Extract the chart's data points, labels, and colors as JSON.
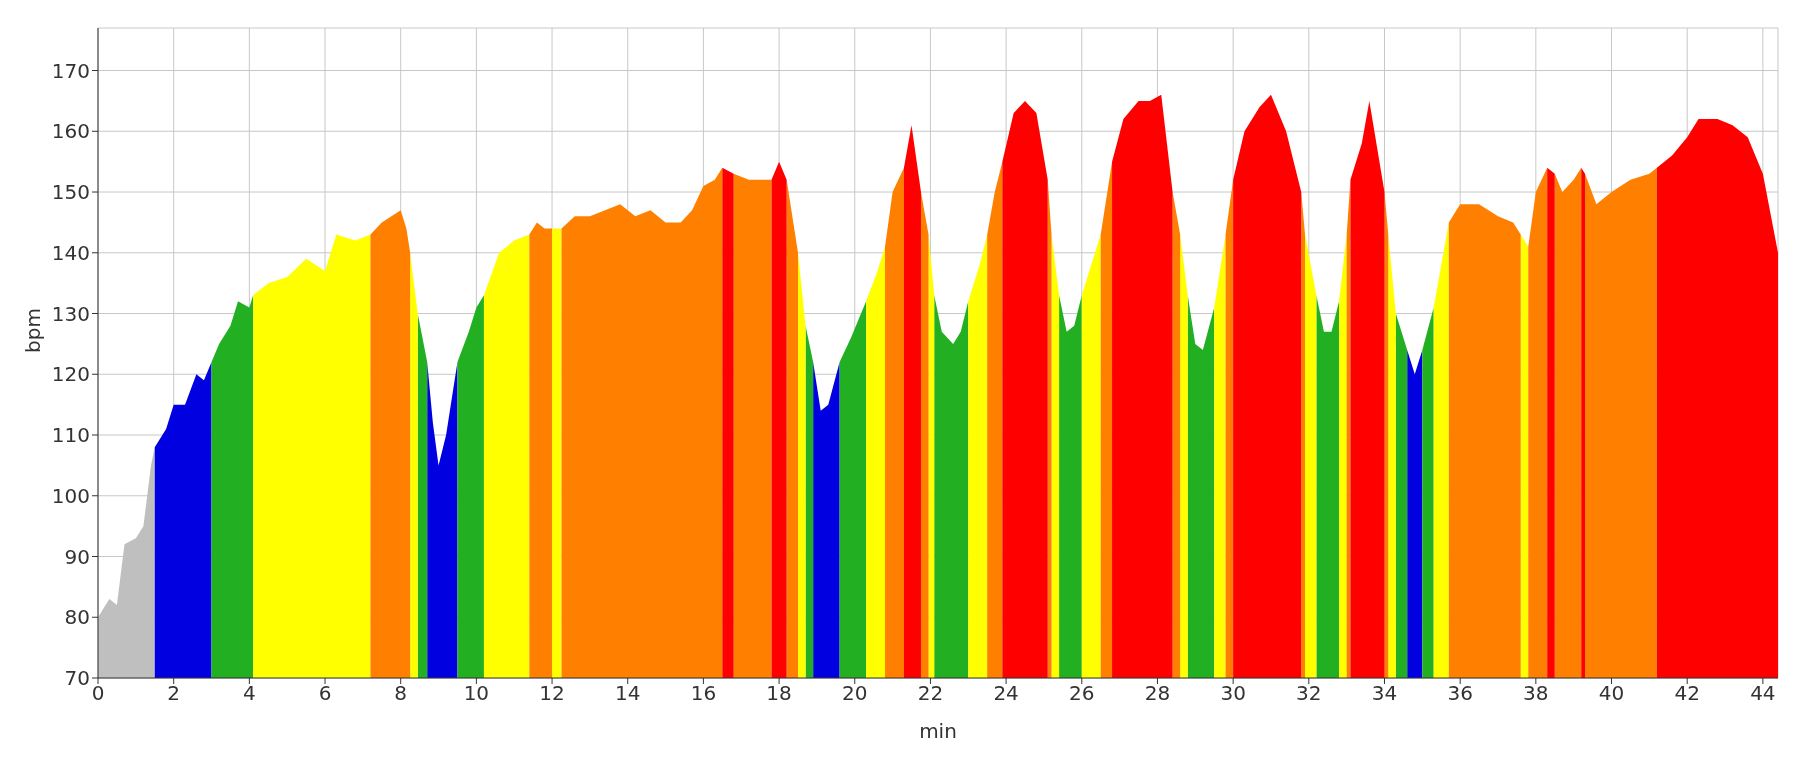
{
  "chart_data": {
    "type": "area",
    "xlabel": "min",
    "ylabel": "bpm",
    "xlim": [
      0,
      44.4
    ],
    "ylim": [
      70,
      177
    ],
    "xticks": [
      0,
      2,
      4,
      6,
      8,
      10,
      12,
      14,
      16,
      18,
      20,
      22,
      24,
      26,
      28,
      30,
      32,
      34,
      36,
      38,
      40,
      42,
      44
    ],
    "yticks": [
      70,
      80,
      90,
      100,
      110,
      120,
      130,
      140,
      150,
      160,
      170
    ],
    "grid": true,
    "series": [
      {
        "color": "#bfbfbf",
        "x": [
          0,
          0.3,
          0.5,
          0.7,
          1.0,
          1.2,
          1.4,
          1.5
        ],
        "values": [
          80,
          83,
          82,
          92,
          93,
          95,
          105,
          108
        ]
      },
      {
        "color": "#0000e0",
        "x": [
          1.5,
          1.8,
          2.0,
          2.3,
          2.6,
          2.8,
          3.0,
          5,
          8.7,
          8.85,
          9.0,
          9.2,
          9.5,
          15,
          18.9,
          19.1,
          19.3,
          19.6,
          27,
          34.6,
          34.8,
          35.0
        ],
        "values": [
          108,
          111,
          115,
          115,
          120,
          119,
          122,
          null,
          122,
          112,
          105,
          110,
          122,
          null,
          122,
          114,
          115,
          122,
          null,
          124,
          120,
          124
        ]
      },
      {
        "color": "#22b022",
        "x": [
          3.0,
          3.2,
          3.5,
          3.7,
          4.0,
          4.1,
          6,
          8.45,
          8.7,
          9,
          9.5,
          9.8,
          10.0,
          10.2,
          15,
          18.7,
          18.9,
          19.2,
          19.6,
          19.9,
          20.3,
          21,
          22.1,
          22.3,
          22.6,
          22.8,
          23.0,
          24,
          25.4,
          25.6,
          25.8,
          26.0,
          27,
          28.8,
          29.0,
          29.2,
          29.5,
          30,
          32.2,
          32.4,
          32.6,
          32.8,
          33.5,
          34.3,
          34.6,
          34.8,
          35.0,
          35.3
        ],
        "values": [
          122,
          125,
          128,
          132,
          131,
          133,
          null,
          130,
          122,
          null,
          122,
          127,
          131,
          133,
          null,
          128,
          122,
          null,
          122,
          126,
          132,
          null,
          133,
          127,
          125,
          127,
          132,
          null,
          133,
          127,
          128,
          133,
          null,
          133,
          125,
          124,
          131,
          null,
          133,
          127,
          127,
          132,
          null,
          130,
          124,
          null,
          124,
          131
        ]
      },
      {
        "color": "#ffff00",
        "x": [
          4.1,
          4.5,
          5.0,
          5.5,
          6.0,
          6.3,
          6.8,
          7.2,
          8,
          8.25,
          8.45,
          9,
          10.2,
          10.6,
          11.0,
          11.4,
          11.7,
          12.0,
          12.25,
          15,
          18.5,
          18.7,
          19,
          20.3,
          20.6,
          20.8,
          21.5,
          21.95,
          22.1,
          22.5,
          23.0,
          23.3,
          23.5,
          24,
          25.2,
          25.4,
          25.8,
          26.0,
          26.3,
          26.5,
          27,
          28.6,
          28.8,
          29,
          29.5,
          29.8,
          31,
          31.9,
          32.2,
          32.5,
          32.8,
          33.0,
          33.5,
          34.1,
          34.3,
          34.8,
          35.3,
          35.5,
          35.7,
          36,
          37.6,
          37.8
        ],
        "values": [
          133,
          135,
          136,
          139,
          137,
          143,
          142,
          143,
          null,
          140,
          130,
          null,
          133,
          140,
          142,
          143,
          null,
          144,
          144,
          null,
          140,
          128,
          null,
          132,
          137,
          141,
          null,
          143,
          133,
          null,
          132,
          138,
          143,
          null,
          143,
          133,
          null,
          133,
          139,
          143,
          null,
          143,
          133,
          null,
          131,
          143,
          null,
          143,
          133,
          null,
          132,
          143,
          null,
          143,
          130,
          null,
          131,
          138,
          145,
          null,
          143,
          141
        ]
      },
      {
        "color": "#ff8000",
        "x": [
          7.2,
          7.5,
          8.0,
          8.15,
          8.25,
          10,
          11.4,
          11.6,
          11.8,
          12.0,
          12.1,
          12.25,
          12.6,
          13.0,
          13.4,
          13.8,
          14.2,
          14.6,
          15.0,
          15.4,
          15.7,
          16.0,
          16.3,
          16.5,
          16.6,
          16.8,
          17.2,
          17.8,
          18,
          18.2,
          18.35,
          18.5,
          19,
          20.8,
          21.0,
          21.3,
          21.5,
          21.75,
          21.95,
          22.5,
          23.5,
          23.7,
          23.9,
          24.5,
          25.1,
          25.2,
          25.8,
          26.5,
          26.8,
          27.5,
          28.4,
          28.6,
          29,
          29.8,
          30.0,
          31,
          31.8,
          31.9,
          32.5,
          33.0,
          33.1,
          33.5,
          34.0,
          34.1,
          35,
          35.7,
          36.0,
          36.5,
          37.0,
          37.4,
          37.6,
          37.7,
          37.8,
          38.0,
          38.3,
          38.4,
          38.5,
          38.7,
          39.0,
          39.2,
          39.25,
          39.3,
          39.6,
          40.0,
          40.5,
          41.0,
          41.2
        ],
        "values": [
          143,
          145,
          147,
          144,
          140,
          null,
          143,
          145,
          144,
          144,
          null,
          144,
          146,
          146,
          147,
          148,
          146,
          147,
          145,
          145,
          147,
          151,
          152,
          154,
          null,
          153,
          152,
          152,
          null,
          152,
          146,
          140,
          null,
          141,
          150,
          154,
          null,
          150,
          143,
          null,
          143,
          150,
          155,
          null,
          152,
          143,
          null,
          143,
          155,
          null,
          150,
          143,
          null,
          143,
          152,
          null,
          150,
          143,
          null,
          143,
          152,
          null,
          150,
          143,
          null,
          145,
          148,
          148,
          146,
          145,
          143,
          null,
          141,
          150,
          154,
          null,
          153,
          150,
          152,
          154,
          null,
          153,
          148,
          150,
          152,
          153,
          154
        ]
      },
      {
        "color": "#ff0000",
        "x": [
          16.5,
          16.8,
          17,
          17.8,
          18.0,
          18.2,
          19,
          21.3,
          21.5,
          21.75,
          22.5,
          23.9,
          24.2,
          24.5,
          24.8,
          25.1,
          26,
          26.8,
          27.1,
          27.5,
          27.8,
          28.1,
          28.4,
          29,
          30.0,
          30.3,
          30.7,
          31.0,
          31.4,
          31.8,
          32.5,
          33.1,
          33.4,
          33.6,
          34.0,
          35,
          38.3,
          38.5,
          38.8,
          39.2,
          39.3,
          40,
          41.2,
          41.6,
          42.0,
          42.3,
          42.8,
          43.2,
          43.6,
          44.0,
          44.4
        ],
        "values": [
          154,
          153,
          null,
          152,
          155,
          152,
          null,
          154,
          161,
          150,
          null,
          155,
          163,
          165,
          163,
          152,
          null,
          155,
          162,
          165,
          165,
          166,
          150,
          null,
          152,
          160,
          164,
          166,
          160,
          150,
          null,
          152,
          158,
          165,
          150,
          null,
          154,
          153,
          null,
          154,
          153,
          null,
          154,
          156,
          159,
          162,
          162,
          161,
          159,
          153,
          140
        ]
      }
    ]
  }
}
